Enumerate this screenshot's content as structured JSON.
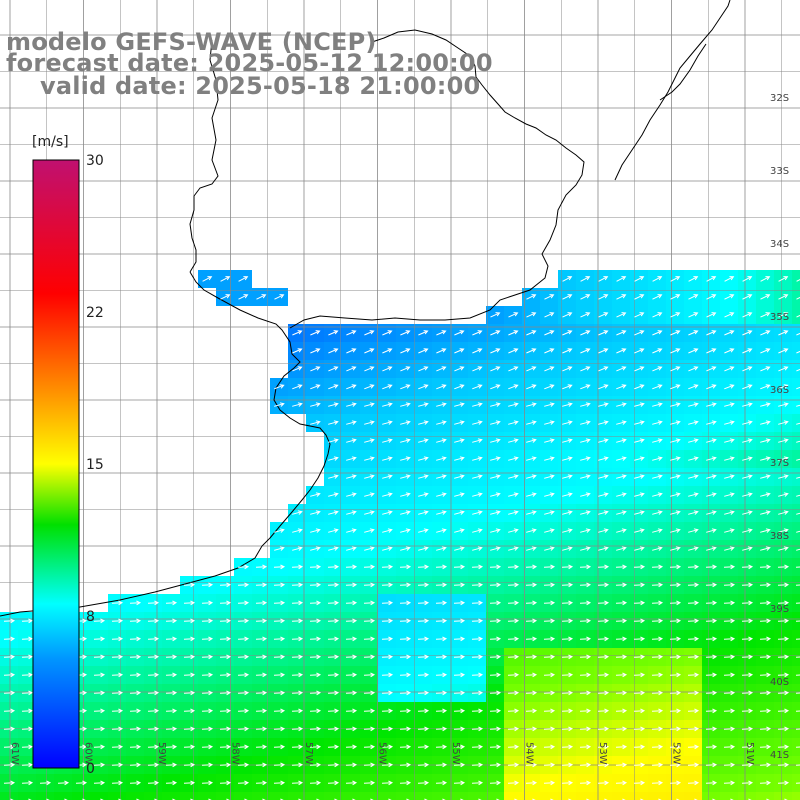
{
  "header": {
    "model_line": "modelo GEFS-WAVE (NCEP)",
    "forecast_line": "forecast date: 2025-05-12 12:00:00",
    "valid_line": "valid date: 2025-05-18 21:00:00"
  },
  "colorbar": {
    "unit": "[m/s]",
    "ticks": [
      "30",
      "22",
      "15",
      "8",
      "0"
    ],
    "tick_values": [
      30,
      22,
      15,
      8,
      0
    ],
    "colors": [
      "#0000ff",
      "#00c8ff",
      "#00ffff",
      "#00e000",
      "#90ff00",
      "#ffff00",
      "#ff8000",
      "#ff0000",
      "#c01070"
    ]
  },
  "grid": {
    "lat_labels": [
      "32S",
      "33S",
      "34S",
      "35S",
      "36S",
      "37S",
      "38S",
      "39S",
      "40S",
      "41S"
    ],
    "lon_labels": [
      "61W",
      "60W",
      "59W",
      "58W",
      "57W",
      "56W",
      "55W",
      "54W",
      "53W",
      "52W",
      "51W"
    ]
  },
  "map": {
    "land_color": "#ffffff",
    "coast_color": "#000000",
    "grid_color": "#888888",
    "arrow_color": "#ffffff",
    "wind_direction": "from southwest in the north, from west in the south"
  }
}
